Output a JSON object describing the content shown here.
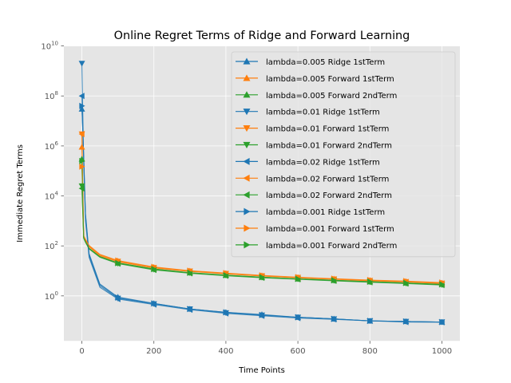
{
  "chart_data": {
    "type": "line",
    "title": "Online Regret Terms of Ridge and Forward Learning",
    "xlabel": "Time Points",
    "ylabel": "Immediate Regret Terms",
    "xlim": [
      -50,
      1050
    ],
    "ylim_log10": [
      -1.8,
      10
    ],
    "y_scale": "log",
    "grid": true,
    "legend_position": "upper right",
    "x_ticks": [
      0,
      200,
      400,
      600,
      800,
      1000
    ],
    "x_tick_labels": [
      "0",
      "200",
      "400",
      "600",
      "800",
      "1000"
    ],
    "y_ticks_exponent": [
      0,
      2,
      4,
      6,
      8,
      10
    ],
    "y_tick_labels": [
      {
        "base": "10",
        "exp": "0"
      },
      {
        "base": "10",
        "exp": "2"
      },
      {
        "base": "10",
        "exp": "4"
      },
      {
        "base": "10",
        "exp": "6"
      },
      {
        "base": "10",
        "exp": "8"
      },
      {
        "base": "10",
        "exp": "10"
      }
    ],
    "colors": {
      "ridge": "#1f77b4",
      "forward1": "#ff7f0e",
      "forward2": "#2ca02c",
      "background": "#e5e5e5"
    },
    "series": [
      {
        "name": "lambda=0.005 Ridge 1stTerm",
        "color": "#1f77b4",
        "marker": "^",
        "x": [
          0,
          5,
          10,
          20,
          50,
          100,
          200,
          300,
          400,
          500,
          600,
          700,
          800,
          900,
          1000
        ],
        "y": [
          30000000,
          500000,
          2000,
          50,
          3,
          0.9,
          0.5,
          0.3,
          0.22,
          0.18,
          0.14,
          0.12,
          0.1,
          0.095,
          0.09
        ]
      },
      {
        "name": "lambda=0.005 Forward 1stTerm",
        "color": "#ff7f0e",
        "marker": "^",
        "x": [
          0,
          5,
          10,
          20,
          50,
          100,
          200,
          300,
          400,
          500,
          600,
          700,
          800,
          900,
          1000
        ],
        "y": [
          900000,
          250,
          180,
          100,
          45,
          25,
          14,
          10,
          8,
          6.5,
          5.5,
          4.8,
          4.2,
          3.8,
          3.3
        ]
      },
      {
        "name": "lambda=0.005 Forward 2ndTerm",
        "color": "#2ca02c",
        "marker": "^",
        "x": [
          0,
          5,
          10,
          20,
          50,
          100,
          200,
          300,
          400,
          500,
          600,
          700,
          800,
          900,
          1000
        ],
        "y": [
          300000,
          220,
          150,
          80,
          38,
          21,
          12,
          8.5,
          6.8,
          5.6,
          4.8,
          4.2,
          3.7,
          3.3,
          2.9
        ]
      },
      {
        "name": "lambda=0.01 Ridge 1stTerm",
        "color": "#1f77b4",
        "marker": "v",
        "x": [
          0,
          5,
          10,
          20,
          50,
          100,
          200,
          300,
          400,
          500,
          600,
          700,
          800,
          900,
          1000
        ],
        "y": [
          2000000000,
          300000,
          1500,
          40,
          2.5,
          0.8,
          0.48,
          0.3,
          0.21,
          0.17,
          0.14,
          0.12,
          0.1,
          0.095,
          0.09
        ]
      },
      {
        "name": "lambda=0.01 Forward 1stTerm",
        "color": "#ff7f0e",
        "marker": "v",
        "x": [
          0,
          5,
          10,
          20,
          50,
          100,
          200,
          300,
          400,
          500,
          600,
          700,
          800,
          900,
          1000
        ],
        "y": [
          3000000,
          240,
          170,
          95,
          42,
          24,
          13.5,
          9.8,
          7.8,
          6.3,
          5.4,
          4.7,
          4.1,
          3.7,
          3.2
        ]
      },
      {
        "name": "lambda=0.01 Forward 2ndTerm",
        "color": "#2ca02c",
        "marker": "v",
        "x": [
          0,
          5,
          10,
          20,
          50,
          100,
          200,
          300,
          400,
          500,
          600,
          700,
          800,
          900,
          1000
        ],
        "y": [
          25000,
          210,
          145,
          78,
          36,
          20,
          11.5,
          8.3,
          6.6,
          5.5,
          4.7,
          4.1,
          3.6,
          3.2,
          2.8
        ]
      },
      {
        "name": "lambda=0.02 Ridge 1stTerm",
        "color": "#1f77b4",
        "marker": "<",
        "x": [
          0,
          5,
          10,
          20,
          50,
          100,
          200,
          300,
          400,
          500,
          600,
          700,
          800,
          900,
          1000
        ],
        "y": [
          100000000,
          200000,
          1000,
          35,
          2.2,
          0.75,
          0.45,
          0.28,
          0.2,
          0.16,
          0.13,
          0.115,
          0.1,
          0.09,
          0.088
        ]
      },
      {
        "name": "lambda=0.02 Forward 1stTerm",
        "color": "#ff7f0e",
        "marker": "<",
        "x": [
          0,
          5,
          10,
          20,
          50,
          100,
          200,
          300,
          400,
          500,
          600,
          700,
          800,
          900,
          1000
        ],
        "y": [
          3000000,
          230,
          165,
          92,
          40,
          23,
          13,
          9.5,
          7.6,
          6.2,
          5.3,
          4.6,
          4,
          3.6,
          3.1
        ]
      },
      {
        "name": "lambda=0.02 Forward 2ndTerm",
        "color": "#2ca02c",
        "marker": "<",
        "x": [
          0,
          5,
          10,
          20,
          50,
          100,
          200,
          300,
          400,
          500,
          600,
          700,
          800,
          900,
          1000
        ],
        "y": [
          20000,
          200,
          140,
          75,
          35,
          19.5,
          11,
          8,
          6.4,
          5.3,
          4.6,
          4,
          3.5,
          3.1,
          2.7
        ]
      },
      {
        "name": "lambda=0.001 Ridge 1stTerm",
        "color": "#1f77b4",
        "marker": ">",
        "x": [
          0,
          5,
          10,
          20,
          50,
          100,
          200,
          300,
          400,
          500,
          600,
          700,
          800,
          900,
          1000
        ],
        "y": [
          40000000,
          400000,
          1800,
          45,
          2.8,
          0.85,
          0.5,
          0.3,
          0.22,
          0.17,
          0.14,
          0.12,
          0.1,
          0.095,
          0.09
        ]
      },
      {
        "name": "lambda=0.001 Forward 1stTerm",
        "color": "#ff7f0e",
        "marker": ">",
        "x": [
          0,
          5,
          10,
          20,
          50,
          100,
          200,
          300,
          400,
          500,
          600,
          700,
          800,
          900,
          1000
        ],
        "y": [
          150000,
          260,
          185,
          105,
          46,
          26,
          14.5,
          10.2,
          8.2,
          6.6,
          5.6,
          4.9,
          4.3,
          3.9,
          3.4
        ]
      },
      {
        "name": "lambda=0.001 Forward 2ndTerm",
        "color": "#2ca02c",
        "marker": ">",
        "x": [
          0,
          5,
          10,
          20,
          50,
          100,
          200,
          300,
          400,
          500,
          600,
          700,
          800,
          900,
          1000
        ],
        "y": [
          250000,
          215,
          150,
          80,
          37,
          20.5,
          11.8,
          8.4,
          6.7,
          5.6,
          4.8,
          4.2,
          3.7,
          3.3,
          2.9
        ]
      }
    ]
  }
}
